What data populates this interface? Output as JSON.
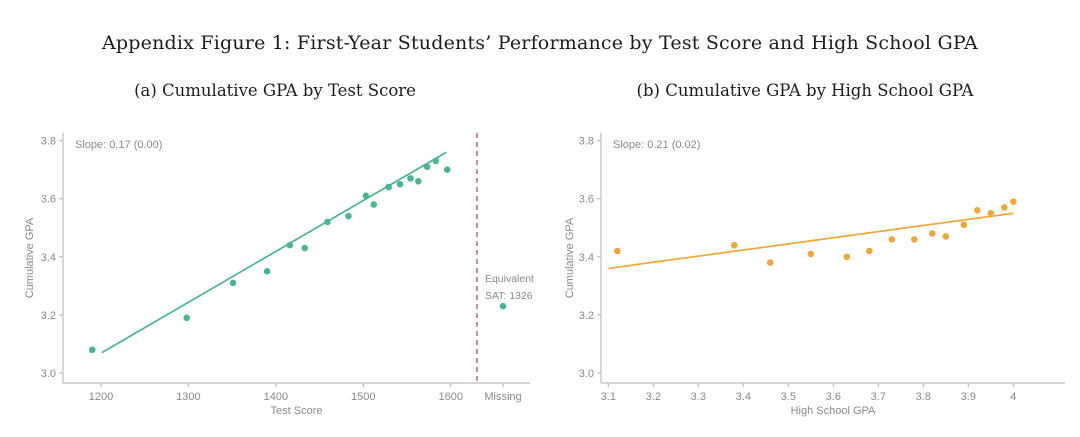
{
  "figure": {
    "title": "Appendix Figure 1: First-Year Students’ Performance by Test Score and High School GPA"
  },
  "colors": {
    "teal": "#4DB396",
    "orange": "#EEA73E",
    "dashed_red": "#B25B5E",
    "axis_line": "#bdbdbd",
    "tick_text": "#8a8a8a",
    "title_text": "#1c1c1c",
    "background": "#ffffff"
  },
  "chart_data": [
    {
      "type": "scatter",
      "title": "(a) Cumulative GPA by Test Score",
      "xlabel": "Test Score",
      "ylabel": "Cumulative GPA",
      "annotation": "Slope: 0.17 (0.00)",
      "color": "#4DB396",
      "xlim": [
        1155,
        1655
      ],
      "ylim": [
        3.0,
        3.85
      ],
      "xticks": [
        1200,
        1300,
        1400,
        1500,
        1600
      ],
      "yticks": [
        3.0,
        3.2,
        3.4,
        3.6,
        3.8
      ],
      "grid": false,
      "points": [
        [
          1190,
          3.08
        ],
        [
          1298,
          3.19
        ],
        [
          1351,
          3.31
        ],
        [
          1390,
          3.35
        ],
        [
          1416,
          3.44
        ],
        [
          1433,
          3.43
        ],
        [
          1459,
          3.52
        ],
        [
          1483,
          3.54
        ],
        [
          1503,
          3.61
        ],
        [
          1512,
          3.58
        ],
        [
          1529,
          3.64
        ],
        [
          1542,
          3.65
        ],
        [
          1554,
          3.67
        ],
        [
          1563,
          3.66
        ],
        [
          1573,
          3.71
        ],
        [
          1583,
          3.73
        ],
        [
          1596,
          3.7
        ]
      ],
      "trend": {
        "x1": 1201,
        "y1": 3.07,
        "x2": 1595,
        "y2": 3.76
      },
      "vline": {
        "x": 1630,
        "style": "dashed",
        "color": "#B25B5E",
        "label_lines": [
          "Equivalent",
          "SAT: 1326"
        ]
      },
      "missing_category": {
        "label": "Missing",
        "point_y": 3.23
      }
    },
    {
      "type": "scatter",
      "title": "(b)  Cumulative GPA by High School GPA",
      "xlabel": "High School GPA",
      "ylabel": "Cumulative GPA",
      "annotation": "Slope: 0.21 (0.02)",
      "color": "#EEA73E",
      "xlim": [
        3.06,
        4.12
      ],
      "ylim": [
        3.0,
        3.85
      ],
      "xticks": [
        3.1,
        3.2,
        3.3,
        3.4,
        3.5,
        3.6,
        3.7,
        3.8,
        3.9,
        4
      ],
      "yticks": [
        3.0,
        3.2,
        3.4,
        3.6,
        3.8
      ],
      "grid": false,
      "points": [
        [
          3.12,
          3.42
        ],
        [
          3.38,
          3.44
        ],
        [
          3.46,
          3.38
        ],
        [
          3.55,
          3.41
        ],
        [
          3.63,
          3.4
        ],
        [
          3.68,
          3.42
        ],
        [
          3.73,
          3.46
        ],
        [
          3.78,
          3.46
        ],
        [
          3.82,
          3.48
        ],
        [
          3.85,
          3.47
        ],
        [
          3.89,
          3.51
        ],
        [
          3.92,
          3.56
        ],
        [
          3.95,
          3.55
        ],
        [
          3.98,
          3.57
        ],
        [
          4.0,
          3.59
        ]
      ],
      "trend": {
        "x1": 3.1,
        "y1": 3.36,
        "x2": 4.0,
        "y2": 3.55
      }
    }
  ]
}
